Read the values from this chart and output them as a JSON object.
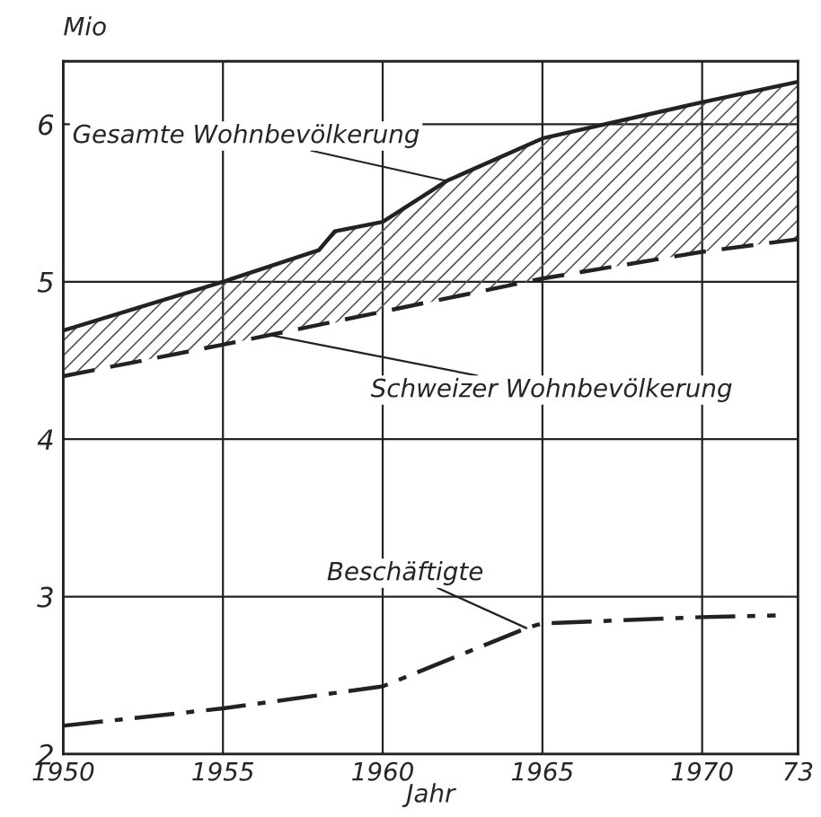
{
  "chart_data": {
    "type": "line",
    "xlabel": "Jahr",
    "ylabel": "Mio",
    "xlim": [
      1950,
      1973
    ],
    "xticks": [
      1950,
      1955,
      1960,
      1965,
      1970,
      {
        "value": 1973,
        "label": "73"
      }
    ],
    "ylim": [
      2,
      6.4
    ],
    "yticks": [
      2,
      3,
      4,
      5,
      6
    ],
    "grid": true,
    "legend": false,
    "series": [
      {
        "color": "#222222",
        "line_style": "solid",
        "x": [
          1950,
          1955,
          1958,
          1958.5,
          1960,
          1962,
          1965,
          1970,
          1973
        ],
        "values": [
          4.69,
          5.0,
          5.2,
          5.32,
          5.38,
          5.64,
          5.91,
          6.14,
          6.27
        ],
        "lower": [
          4.4,
          4.6,
          4.72,
          4.74,
          4.81,
          4.89,
          5.02,
          5.19,
          5.27
        ],
        "upper": [
          4.69,
          5.0,
          5.2,
          5.32,
          5.38,
          5.64,
          5.91,
          6.14,
          6.27
        ]
      },
      {
        "color": "#222222",
        "line_style": "dashed",
        "x": [
          1950,
          1955,
          1960,
          1965,
          1970,
          1973
        ],
        "values": [
          4.4,
          4.6,
          4.81,
          5.02,
          5.19,
          5.27
        ]
      },
      {
        "color": "#222222",
        "line_style": "dashdot",
        "x": [
          1950,
          1955,
          1960,
          1964.5,
          1965,
          1970,
          1972.3
        ],
        "values": [
          2.18,
          2.29,
          2.43,
          2.8,
          2.83,
          2.87,
          2.88
        ]
      }
    ],
    "annotations": [
      {
        "text": "Gesamte Wohnbevölkerung",
        "x": 1962,
        "y": 5.64
      },
      {
        "text": "Schweizer Wohnbevölkerung",
        "x": 1956.5,
        "y": 4.66
      },
      {
        "text": "Beschäftigte",
        "x": 1964.5,
        "y": 2.8
      }
    ]
  }
}
